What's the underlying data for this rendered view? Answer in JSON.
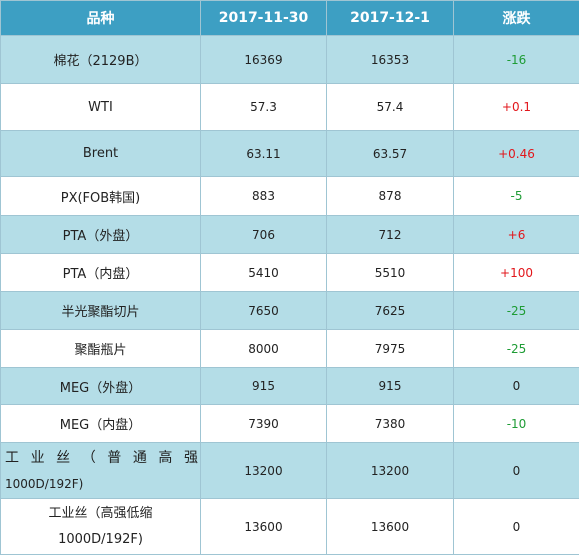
{
  "header": {
    "col_product": "品种",
    "col_date1": "2017-11-30",
    "col_date2": "2017-12-1",
    "col_change": "涨跌"
  },
  "rows": [
    {
      "name": "棉花（2129B）",
      "v1": "16369",
      "v2": "16353",
      "change": "-16",
      "trend": "down"
    },
    {
      "name": "WTI",
      "v1": "57.3",
      "v2": "57.4",
      "change": "+0.1",
      "trend": "up"
    },
    {
      "name": "Brent",
      "v1": "63.11",
      "v2": "63.57",
      "change": "+0.46",
      "trend": "up"
    },
    {
      "name": "PX(FOB韩国)",
      "v1": "883",
      "v2": "878",
      "change": "-5",
      "trend": "down"
    },
    {
      "name": "PTA（外盘）",
      "v1": "706",
      "v2": "712",
      "change": "+6",
      "trend": "up"
    },
    {
      "name": "PTA（内盘）",
      "v1": "5410",
      "v2": "5510",
      "change": "+100",
      "trend": "up"
    },
    {
      "name": "半光聚酯切片",
      "v1": "7650",
      "v2": "7625",
      "change": "-25",
      "trend": "down"
    },
    {
      "name": "聚酯瓶片",
      "v1": "8000",
      "v2": "7975",
      "change": "-25",
      "trend": "down"
    },
    {
      "name": "MEG（外盘）",
      "v1": "915",
      "v2": "915",
      "change": "0",
      "trend": "flat"
    },
    {
      "name": "MEG（内盘）",
      "v1": "7390",
      "v2": "7380",
      "change": "-10",
      "trend": "down"
    },
    {
      "name_line1": "工业丝（普通高强",
      "name_line2": "1000D/192F)",
      "v1": "13200",
      "v2": "13200",
      "change": "0",
      "trend": "flat"
    },
    {
      "name_line1": "工业丝（高强低缩",
      "name_line2": "1000D/192F)",
      "v1": "13600",
      "v2": "13600",
      "change": "0",
      "trend": "flat"
    }
  ],
  "colors": {
    "header_bg": "#3d9fc3",
    "row_shade": "#b4dde7",
    "up": "#e2161b",
    "down": "#1e9c35"
  }
}
